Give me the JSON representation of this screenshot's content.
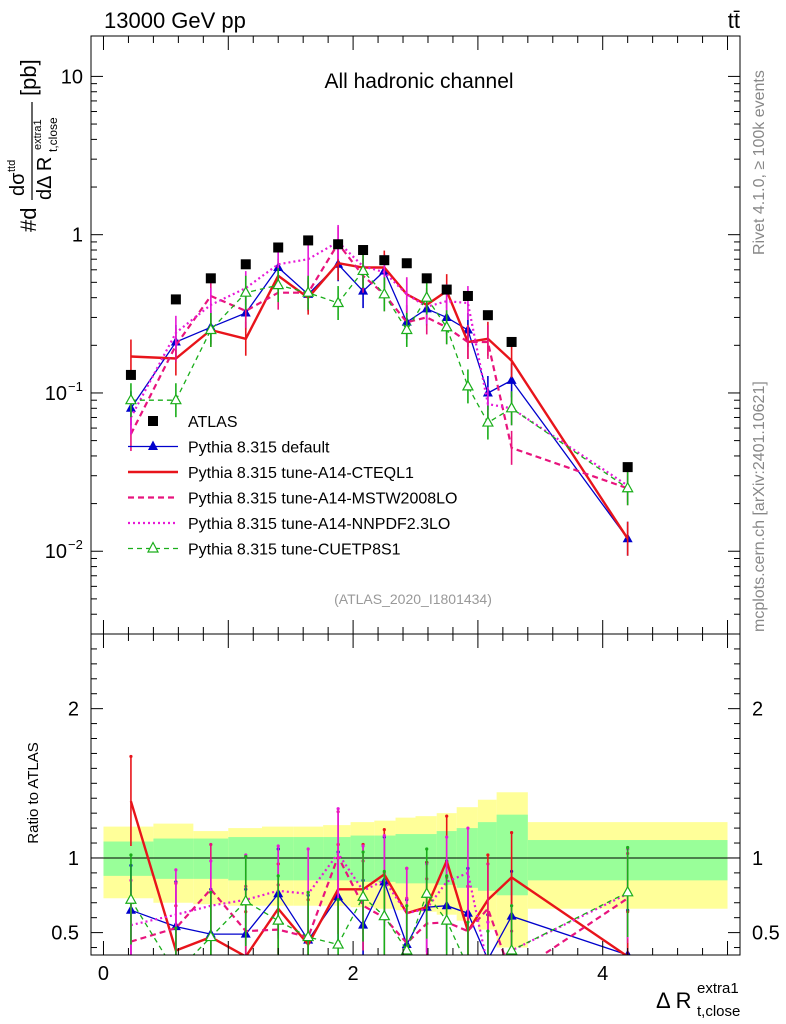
{
  "header": {
    "energy_label": "13000 GeV pp",
    "process_label": "tt̄"
  },
  "side_labels": {
    "rivet": "Rivet 4.1.0, ≥ 100k events",
    "mcplots": "mcplots.cern.ch [arXiv:2401.10621]"
  },
  "analysis_id": "(ATLAS_2020_I1801434)",
  "chart_data": [
    {
      "type": "scatter",
      "title": "All hadronic channel",
      "ylabel_main": "#d",
      "ylabel_frac_num": "dσ",
      "ylabel_frac_num_sup": "ttd",
      "ylabel_frac_den": "dΔ R",
      "ylabel_frac_den_sub": "t,close",
      "ylabel_frac_den_sup": "extra1",
      "ylabel_unit": "[pb]",
      "xlabel": "Δ R",
      "xlabel_sub": "t,close",
      "xlabel_sup": "extra1",
      "yscale": "log",
      "ylim": [
        0.003,
        18
      ],
      "xlim": [
        -0.1,
        5.1
      ],
      "ytick_labels": {
        "10": "10",
        "1": "1",
        "0.1": "10^-1",
        "0.01": "10^-2"
      },
      "legend_position": "lower-left",
      "x": [
        0.22,
        0.58,
        0.86,
        1.14,
        1.4,
        1.64,
        1.88,
        2.08,
        2.25,
        2.43,
        2.59,
        2.75,
        2.92,
        3.08,
        3.27,
        4.2
      ],
      "series": [
        {
          "name": "ATLAS",
          "style": "data",
          "color": "#000000",
          "values": [
            0.13,
            0.39,
            0.53,
            0.65,
            0.83,
            0.92,
            0.87,
            0.8,
            0.69,
            0.66,
            0.53,
            0.45,
            0.41,
            0.31,
            0.21,
            0.034
          ]
        },
        {
          "name": "Pythia 8.315 default",
          "style": "solid-triangle",
          "color": "#0000cc",
          "values": [
            0.08,
            0.21,
            0.26,
            0.32,
            0.62,
            0.42,
            0.65,
            0.44,
            0.59,
            0.28,
            0.34,
            0.3,
            0.25,
            0.1,
            0.12,
            0.012
          ]
        },
        {
          "name": "Pythia 8.315 tune-A14-CTEQL1",
          "style": "solid-thick",
          "color": "#e8141b",
          "values": [
            0.17,
            0.165,
            0.25,
            0.22,
            0.55,
            0.4,
            0.66,
            0.62,
            0.62,
            0.42,
            0.36,
            0.44,
            0.21,
            0.22,
            0.16,
            0.012
          ]
        },
        {
          "name": "Pythia 8.315 tune-A14-MSTW2008LO",
          "style": "dashed",
          "color": "#e8147d",
          "values": [
            0.055,
            0.2,
            0.41,
            0.33,
            0.43,
            0.43,
            0.88,
            0.55,
            0.42,
            0.28,
            0.3,
            0.26,
            0.21,
            0.21,
            0.045,
            0.025
          ]
        },
        {
          "name": "Pythia 8.315 tune-A14-NNPDF2.3LO",
          "style": "dotted",
          "color": "#e619d7",
          "values": [
            0.07,
            0.24,
            0.36,
            0.46,
            0.65,
            0.7,
            0.9,
            0.63,
            0.58,
            0.42,
            0.35,
            0.38,
            0.37,
            0.085,
            0.08,
            0.026
          ]
        },
        {
          "name": "Pythia 8.315 tune-CUETP8S1",
          "style": "dashed-open-triangle",
          "color": "#1aae1a",
          "values": [
            0.09,
            0.09,
            0.25,
            0.43,
            0.48,
            0.43,
            0.37,
            0.59,
            0.42,
            0.25,
            0.4,
            0.26,
            0.11,
            0.065,
            0.08,
            0.025
          ]
        }
      ],
      "legend": [
        "ATLAS",
        "Pythia 8.315 default",
        "Pythia 8.315 tune-A14-CTEQL1",
        "Pythia 8.315 tune-A14-MSTW2008LO",
        "Pythia 8.315 tune-A14-NNPDF2.3LO",
        "Pythia 8.315 tune-CUETP8S1"
      ]
    },
    {
      "type": "line",
      "title": "",
      "ylabel": "Ratio to ATLAS",
      "xlabel": "Δ R t,close extra1",
      "ylim": [
        0.35,
        2.5
      ],
      "xlim": [
        -0.1,
        5.1
      ],
      "yticks": [
        0.5,
        1,
        2
      ],
      "ytick_labels": [
        "0.5",
        "1",
        "2"
      ],
      "xticks": [
        0,
        2,
        4
      ],
      "xtick_labels": [
        "0",
        "2",
        "4"
      ],
      "uncertainty_bands": {
        "bin_edges": [
          0.0,
          0.4,
          0.72,
          1.0,
          1.27,
          1.52,
          1.76,
          1.98,
          2.17,
          2.34,
          2.5,
          2.67,
          2.83,
          3.0,
          3.15,
          3.4,
          5.0
        ],
        "green_low": [
          0.88,
          0.86,
          0.86,
          0.85,
          0.85,
          0.85,
          0.85,
          0.84,
          0.84,
          0.83,
          0.83,
          0.82,
          0.8,
          0.78,
          0.75,
          0.85
        ],
        "green_high": [
          1.11,
          1.13,
          1.13,
          1.14,
          1.14,
          1.14,
          1.14,
          1.15,
          1.15,
          1.16,
          1.16,
          1.18,
          1.2,
          1.24,
          1.29,
          1.12
        ],
        "yellow_low": [
          0.73,
          0.7,
          0.69,
          0.68,
          0.68,
          0.68,
          0.68,
          0.67,
          0.66,
          0.65,
          0.64,
          0.62,
          0.58,
          0.52,
          0.4,
          0.66
        ],
        "yellow_high": [
          1.21,
          1.23,
          1.18,
          1.2,
          1.21,
          1.21,
          1.22,
          1.24,
          1.25,
          1.27,
          1.28,
          1.3,
          1.34,
          1.39,
          1.44,
          1.24
        ]
      },
      "series": [
        {
          "name": "Pythia 8.315 default",
          "color": "#0000cc",
          "values": [
            0.65,
            0.54,
            0.49,
            0.49,
            0.76,
            0.45,
            0.74,
            0.55,
            0.84,
            0.42,
            0.67,
            0.68,
            0.63,
            0.32,
            0.61,
            0.35
          ]
        },
        {
          "name": "Pythia 8.315 tune-A14-CTEQL1",
          "color": "#e8141b",
          "values": [
            1.38,
            0.38,
            0.47,
            0.34,
            0.66,
            0.42,
            0.79,
            0.79,
            0.89,
            0.63,
            0.67,
            0.98,
            0.51,
            0.72,
            0.87,
            0.34
          ]
        },
        {
          "name": "Pythia 8.315 tune-A14-MSTW2008LO",
          "color": "#e8147d",
          "values": [
            0.44,
            0.53,
            0.79,
            0.51,
            0.52,
            0.47,
            1.01,
            0.68,
            0.6,
            0.43,
            0.56,
            0.57,
            0.51,
            0.66,
            0.21,
            0.73
          ]
        },
        {
          "name": "Pythia 8.315 tune-A14-NNPDF2.3LO",
          "color": "#e619d7",
          "values": [
            0.55,
            0.62,
            0.68,
            0.72,
            0.78,
            0.76,
            1.03,
            0.78,
            0.85,
            0.63,
            0.66,
            0.84,
            0.9,
            0.27,
            0.38,
            0.76
          ]
        },
        {
          "name": "Pythia 8.315 tune-CUETP8S1",
          "color": "#1aae1a",
          "values": [
            0.72,
            0.23,
            0.47,
            0.71,
            0.58,
            0.47,
            0.42,
            0.74,
            0.61,
            0.38,
            0.76,
            0.58,
            0.27,
            0.21,
            0.38,
            0.77
          ]
        }
      ]
    }
  ]
}
